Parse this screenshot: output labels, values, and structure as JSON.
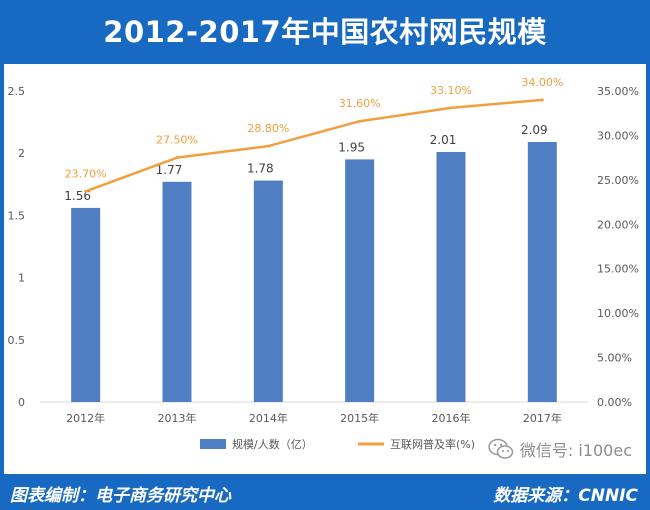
{
  "header": {
    "title": "2012-2017年中国农村网民规模"
  },
  "footer": {
    "left": "图表编制：电子商务研究中心",
    "right": "数据来源：CNNIC"
  },
  "watermark": {
    "text": "微信号: i100ec",
    "icon": "wechat-icon"
  },
  "colors": {
    "brand": "#1769c1",
    "bar": "#4f7fc2",
    "line": "#f0a040"
  },
  "chart_data": {
    "type": "bar",
    "categories": [
      "2012年",
      "2013年",
      "2014年",
      "2015年",
      "2016年",
      "2017年"
    ],
    "series": [
      {
        "name": "规模/人数（亿）",
        "type": "bar",
        "axis": "left",
        "values": [
          1.56,
          1.77,
          1.78,
          1.95,
          2.01,
          2.09
        ],
        "labels": [
          "1.56",
          "1.77",
          "1.78",
          "1.95",
          "2.01",
          "2.09"
        ]
      },
      {
        "name": "互联网普及率(%)",
        "type": "line",
        "axis": "right",
        "values": [
          23.7,
          27.5,
          28.8,
          31.6,
          33.1,
          34.0
        ],
        "labels": [
          "23.70%",
          "27.50%",
          "28.80%",
          "31.60%",
          "33.10%",
          "34.00%"
        ]
      }
    ],
    "y_left": {
      "min": 0,
      "max": 2.5,
      "ticks": [
        "0",
        "0.5",
        "1",
        "1.5",
        "2",
        "2.5"
      ]
    },
    "y_right": {
      "min": 0,
      "max": 35,
      "ticks": [
        "0.00%",
        "5.00%",
        "10.00%",
        "15.00%",
        "20.00%",
        "25.00%",
        "30.00%",
        "35.00%"
      ]
    },
    "legend_position": "bottom"
  }
}
